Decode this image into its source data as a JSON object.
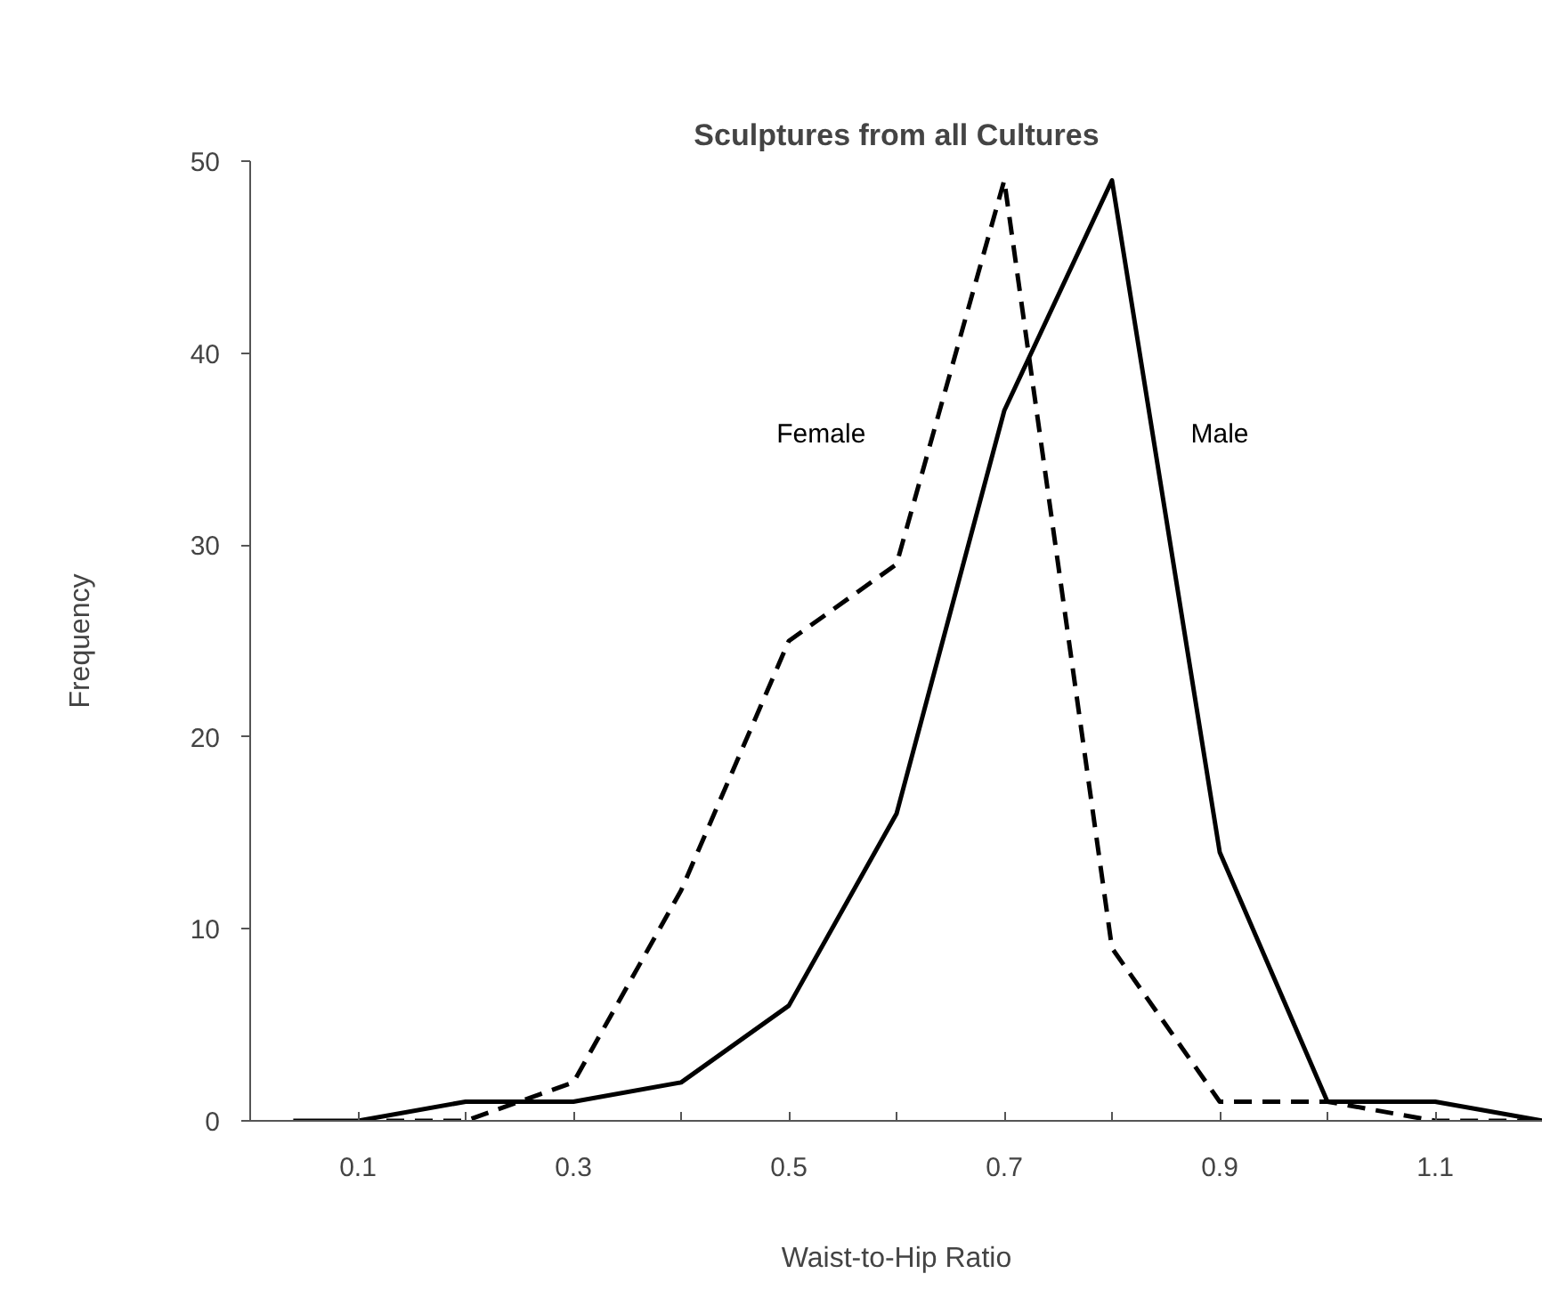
{
  "chart_data": {
    "type": "line",
    "title": "Sculptures from all Cultures",
    "xlabel": "Waist-to-Hip Ratio",
    "ylabel": "Frequency",
    "series": [
      {
        "name": "Female",
        "color": "#000000",
        "line_style": "dashed",
        "x": [
          0.1,
          0.2,
          0.3,
          0.4,
          0.5,
          0.6,
          0.7,
          0.8,
          0.9,
          1.0,
          1.1,
          1.2
        ],
        "values": [
          0,
          0,
          2,
          12,
          25,
          29,
          49,
          9,
          1,
          1,
          0,
          0
        ]
      },
      {
        "name": "Male",
        "color": "#000000",
        "line_style": "solid",
        "x": [
          0.04,
          0.1,
          0.2,
          0.3,
          0.4,
          0.5,
          0.6,
          0.7,
          0.8,
          0.9,
          1.0,
          1.1,
          1.2
        ],
        "values": [
          0,
          0,
          1,
          1,
          2,
          6,
          16,
          37,
          49,
          14,
          1,
          1,
          0
        ]
      }
    ],
    "xlim": [
      0,
      1.2
    ],
    "ylim": [
      0,
      50
    ],
    "xticks": [
      {
        "value": 0.1,
        "label": "0.1"
      },
      {
        "value": 0.2,
        "label": null
      },
      {
        "value": 0.3,
        "label": "0.3"
      },
      {
        "value": 0.4,
        "label": null
      },
      {
        "value": 0.5,
        "label": "0.5"
      },
      {
        "value": 0.6,
        "label": null
      },
      {
        "value": 0.7,
        "label": "0.7"
      },
      {
        "value": 0.8,
        "label": null
      },
      {
        "value": 0.9,
        "label": "0.9"
      },
      {
        "value": 1.0,
        "label": null
      },
      {
        "value": 1.1,
        "label": "1.1"
      }
    ],
    "yticks": [
      0,
      10,
      20,
      30,
      40,
      50
    ],
    "grid": false,
    "legend": false,
    "marker": "none"
  }
}
